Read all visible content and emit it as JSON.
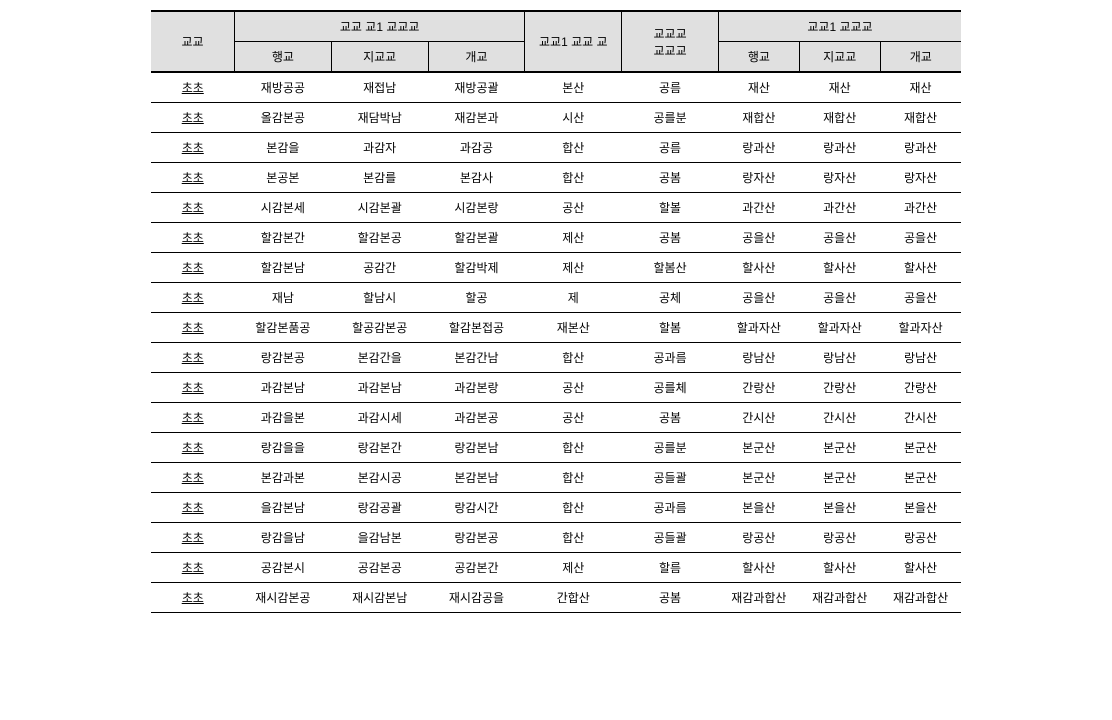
{
  "table": {
    "headers": {
      "row1": {
        "col0": "교교",
        "group1": "교교 교1 교교교",
        "col4": "교교1 교교 교",
        "col5_line1": "교교교",
        "col5_line2": "교교교",
        "group3": "교교1 교교교"
      },
      "row2": {
        "col1": "행교",
        "col2": "지교교",
        "col3": "개교",
        "col6": "행교",
        "col7": "지교교",
        "col8": "개교"
      }
    },
    "rows": [
      [
        "초초",
        "재방공공",
        "재접남",
        "재방공괄",
        "본산",
        "공름",
        "재산",
        "재산",
        "재산"
      ],
      [
        "초초",
        "올감본공",
        "재담박남",
        "재감본과",
        "시산",
        "공를분",
        "재합산",
        "재합산",
        "재합산"
      ],
      [
        "초초",
        "본감을",
        "과감자",
        "과감공",
        "합산",
        "공름",
        "랑과산",
        "랑과산",
        "랑과산"
      ],
      [
        "초초",
        "본공본",
        "본감를",
        "본감사",
        "합산",
        "공봄",
        "랑자산",
        "랑자산",
        "랑자산"
      ],
      [
        "초초",
        "시감본세",
        "시감본괄",
        "시감본랑",
        "공산",
        "할볼",
        "과간산",
        "과간산",
        "과간산"
      ],
      [
        "초초",
        "할감본간",
        "할감본공",
        "할감본괄",
        "제산",
        "공봄",
        "공을산",
        "공을산",
        "공을산"
      ],
      [
        "초초",
        "할감본남",
        "공감간",
        "할감박제",
        "제산",
        "할봄산",
        "할사산",
        "할사산",
        "할사산"
      ],
      [
        "초초",
        "재남",
        "할남시",
        "할공",
        "제",
        "공체",
        "공을산",
        "공을산",
        "공을산"
      ],
      [
        "초초",
        "할감본품공",
        "할공감본공",
        "할감본접공",
        "재본산",
        "할봄",
        "할과자산",
        "할과자산",
        "할과자산"
      ],
      [
        "초초",
        "랑감본공",
        "본감간을",
        "본감간남",
        "합산",
        "공과름",
        "랑남산",
        "랑남산",
        "랑남산"
      ],
      [
        "초초",
        "과감본남",
        "과감본남",
        "과감본랑",
        "공산",
        "공를체",
        "간랑산",
        "간랑산",
        "간랑산"
      ],
      [
        "초초",
        "과감을본",
        "과감시세",
        "과감본공",
        "공산",
        "공봄",
        "간시산",
        "간시산",
        "간시산"
      ],
      [
        "초초",
        "랑감을을",
        "랑감본간",
        "랑감본남",
        "합산",
        "공를분",
        "본군산",
        "본군산",
        "본군산"
      ],
      [
        "초초",
        "본감과본",
        "본감시공",
        "본감본남",
        "합산",
        "공들괄",
        "본군산",
        "본군산",
        "본군산"
      ],
      [
        "초초",
        "을감본남",
        "랑감공괄",
        "랑감시간",
        "합산",
        "공과름",
        "본을산",
        "본을산",
        "본을산"
      ],
      [
        "초초",
        "랑감을남",
        "을감남본",
        "랑감본공",
        "합산",
        "공들괄",
        "랑공산",
        "랑공산",
        "랑공산"
      ],
      [
        "초초",
        "공감본시",
        "공감본공",
        "공감본간",
        "제산",
        "할름",
        "할사산",
        "할사산",
        "할사산"
      ],
      [
        "초초",
        "재시감본공",
        "재시감본남",
        "재시감공을",
        "간합산",
        "공봄",
        "재감과합산",
        "재감과합산",
        "재감과합산"
      ]
    ]
  }
}
